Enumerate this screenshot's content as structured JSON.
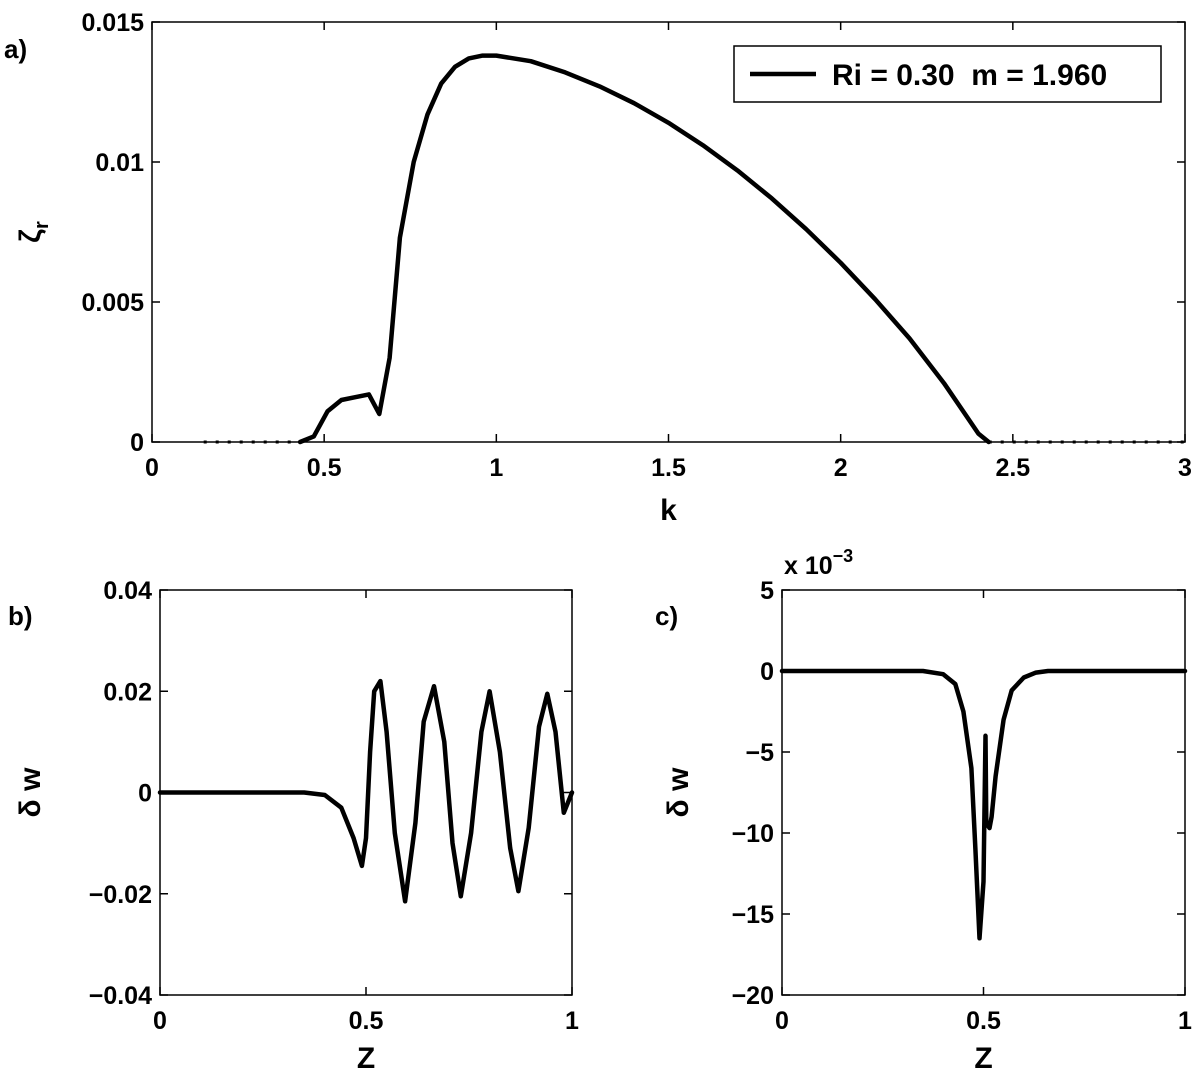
{
  "chart_data": [
    {
      "id": "a",
      "panel_label": "a)",
      "type": "line",
      "xlabel": "k",
      "ylabel": "ζ",
      "ylabel_sub": "r",
      "xlim": [
        0,
        3
      ],
      "ylim": [
        0,
        0.015
      ],
      "xticks": [
        0,
        0.5,
        1,
        1.5,
        2,
        2.5,
        3
      ],
      "xtick_labels": [
        "0",
        "0.5",
        "1",
        "1.5",
        "2",
        "2.5",
        "3"
      ],
      "yticks": [
        0,
        0.005,
        0.01,
        0.015
      ],
      "ytick_labels": [
        "0",
        "0.005",
        "0.01",
        "0.015"
      ],
      "legend": {
        "placement": "top-right"
      },
      "series": [
        {
          "name": "Ri = 0.30  m = 1.960",
          "x": [
            0.43,
            0.47,
            0.51,
            0.55,
            0.59,
            0.63,
            0.66,
            0.69,
            0.72,
            0.76,
            0.8,
            0.84,
            0.88,
            0.92,
            0.96,
            1.0,
            1.1,
            1.2,
            1.3,
            1.4,
            1.5,
            1.6,
            1.7,
            1.8,
            1.9,
            2.0,
            2.1,
            2.2,
            2.3,
            2.35,
            2.4,
            2.43
          ],
          "y": [
            0,
            0.0002,
            0.0011,
            0.0015,
            0.0016,
            0.0017,
            0.001,
            0.003,
            0.0073,
            0.01,
            0.0117,
            0.0128,
            0.0134,
            0.0137,
            0.0138,
            0.0138,
            0.0136,
            0.0132,
            0.0127,
            0.0121,
            0.0114,
            0.0106,
            0.0097,
            0.0087,
            0.0076,
            0.0064,
            0.0051,
            0.0037,
            0.0021,
            0.0012,
            0.0003,
            0
          ]
        },
        {
          "x": [
            0.15,
            0.43
          ],
          "y": [
            0,
            0
          ],
          "style": "dotted"
        },
        {
          "x": [
            2.43,
            3.0
          ],
          "y": [
            0,
            0
          ],
          "style": "dotted"
        }
      ]
    },
    {
      "id": "b",
      "panel_label": "b)",
      "type": "line",
      "xlabel": "Z",
      "ylabel": "δ w",
      "xlim": [
        0,
        1
      ],
      "ylim": [
        -0.04,
        0.04
      ],
      "xticks": [
        0,
        0.5,
        1
      ],
      "xtick_labels": [
        "0",
        "0.5",
        "1"
      ],
      "yticks": [
        -0.04,
        -0.02,
        0,
        0.02,
        0.04
      ],
      "ytick_labels": [
        "−0.04",
        "−0.02",
        "0",
        "0.02",
        "0.04"
      ],
      "series": [
        {
          "x": [
            0,
            0.35,
            0.4,
            0.44,
            0.47,
            0.49,
            0.5,
            0.51,
            0.52,
            0.535,
            0.55,
            0.57,
            0.595,
            0.62,
            0.64,
            0.665,
            0.69,
            0.71,
            0.73,
            0.755,
            0.78,
            0.8,
            0.825,
            0.85,
            0.87,
            0.895,
            0.92,
            0.94,
            0.96,
            0.98,
            1.0
          ],
          "y": [
            0,
            0,
            -0.0005,
            -0.003,
            -0.009,
            -0.0145,
            -0.009,
            0.008,
            0.02,
            0.022,
            0.012,
            -0.008,
            -0.0215,
            -0.006,
            0.014,
            0.021,
            0.01,
            -0.01,
            -0.0205,
            -0.008,
            0.012,
            0.02,
            0.008,
            -0.011,
            -0.0195,
            -0.007,
            0.013,
            0.0195,
            0.012,
            -0.004,
            0
          ]
        }
      ]
    },
    {
      "id": "c",
      "panel_label": "c)",
      "type": "line",
      "xlabel": "Z",
      "ylabel": "δ w",
      "multiplier": "x 10",
      "multiplier_exp": "−3",
      "xlim": [
        0,
        1
      ],
      "ylim": [
        -20,
        5
      ],
      "xticks": [
        0,
        0.5,
        1
      ],
      "xtick_labels": [
        "0",
        "0.5",
        "1"
      ],
      "yticks": [
        -20,
        -15,
        -10,
        -5,
        0,
        5
      ],
      "ytick_labels": [
        "−20",
        "−15",
        "−10",
        "−5",
        "0",
        "5"
      ],
      "series": [
        {
          "x": [
            0,
            0.35,
            0.4,
            0.43,
            0.45,
            0.47,
            0.48,
            0.49,
            0.5,
            0.505,
            0.507,
            0.51,
            0.515,
            0.52,
            0.53,
            0.55,
            0.57,
            0.6,
            0.63,
            0.66,
            1.0
          ],
          "y": [
            0,
            0,
            -0.2,
            -0.8,
            -2.5,
            -6,
            -11,
            -16.5,
            -13,
            -4,
            -9.5,
            -9.5,
            -9.7,
            -9,
            -6.5,
            -3,
            -1.2,
            -0.4,
            -0.1,
            0,
            0
          ]
        }
      ]
    }
  ]
}
